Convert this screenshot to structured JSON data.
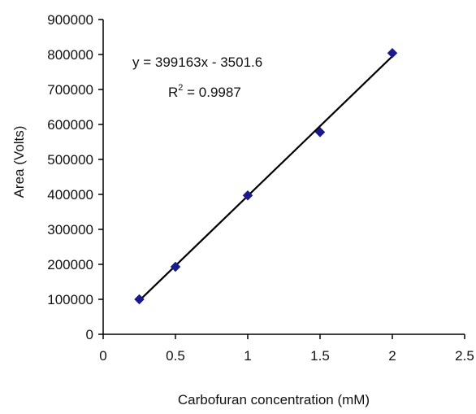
{
  "chart_data": {
    "type": "scatter",
    "xlabel": "Carbofuran concentration (mM)",
    "ylabel": "Area (Volts)",
    "xlim": [
      0,
      2.5
    ],
    "ylim": [
      0,
      900000
    ],
    "xticks": [
      "0",
      "0.5",
      "1",
      "1.5",
      "2",
      "2.5"
    ],
    "yticks": [
      "0",
      "100000",
      "200000",
      "300000",
      "400000",
      "500000",
      "600000",
      "700000",
      "800000",
      "900000"
    ],
    "grid": false,
    "legend": "none",
    "series": [
      {
        "marker": "diamond",
        "color": "#1a1a8c",
        "points": [
          {
            "x": 0.25,
            "y": 100000
          },
          {
            "x": 0.5,
            "y": 193000
          },
          {
            "x": 1.0,
            "y": 397000
          },
          {
            "x": 1.5,
            "y": 578000
          },
          {
            "x": 2.0,
            "y": 804000
          }
        ]
      }
    ],
    "trendline": {
      "type": "linear",
      "slope": 399163,
      "intercept": -3501.6,
      "x_range": [
        0.25,
        2.0
      ],
      "color": "#000000"
    },
    "annotations": {
      "equation": "y = 399163x - 3501.6",
      "r2_prefix": "R",
      "r2_sup": "2",
      "r2_suffix": " = 0.9987"
    }
  }
}
